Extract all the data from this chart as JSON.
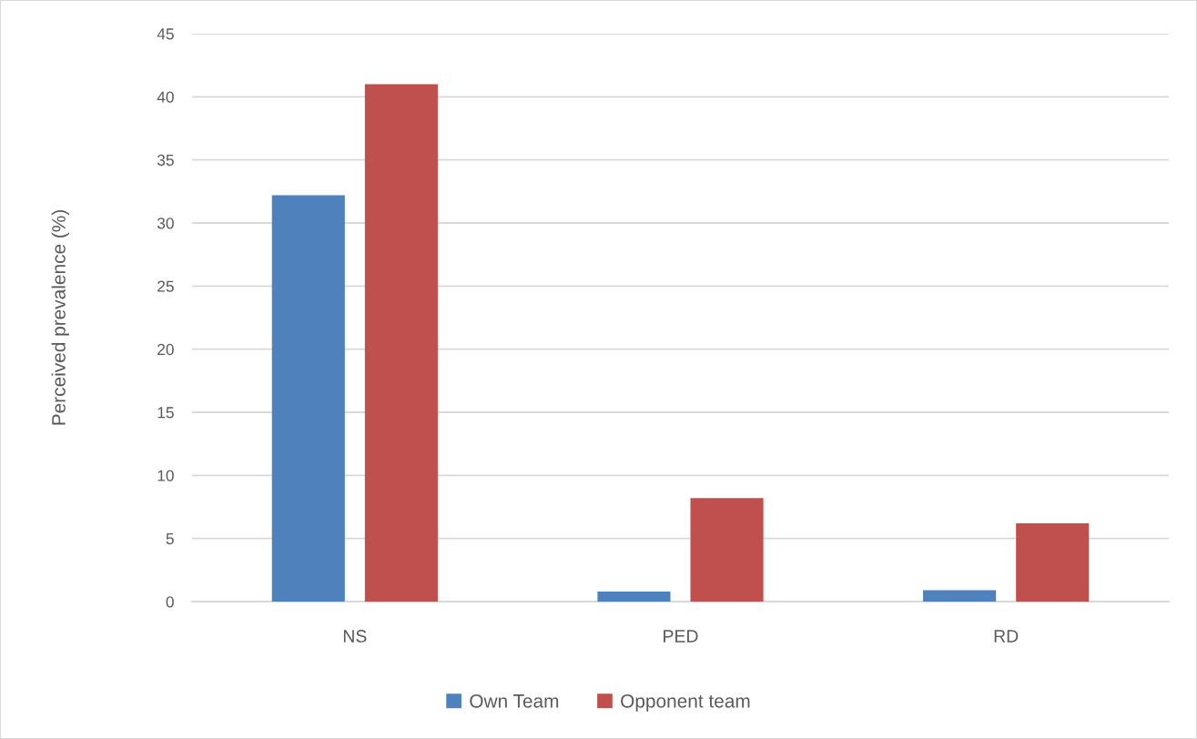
{
  "chart_data": {
    "type": "bar",
    "ylabel": "Perceived prevalence (%)",
    "categories": [
      "NS",
      "PED",
      "RD"
    ],
    "series": [
      {
        "name": "Own Team",
        "color": "#4f81bd",
        "values": [
          32.2,
          0.8,
          0.9
        ]
      },
      {
        "name": "Opponent team",
        "color": "#c0504d",
        "values": [
          41.0,
          8.2,
          6.2
        ]
      }
    ],
    "ylim": [
      0,
      45
    ],
    "yticks": [
      0,
      5,
      10,
      15,
      20,
      25,
      30,
      35,
      40,
      45
    ],
    "grid": "y",
    "legend": "bottom"
  }
}
